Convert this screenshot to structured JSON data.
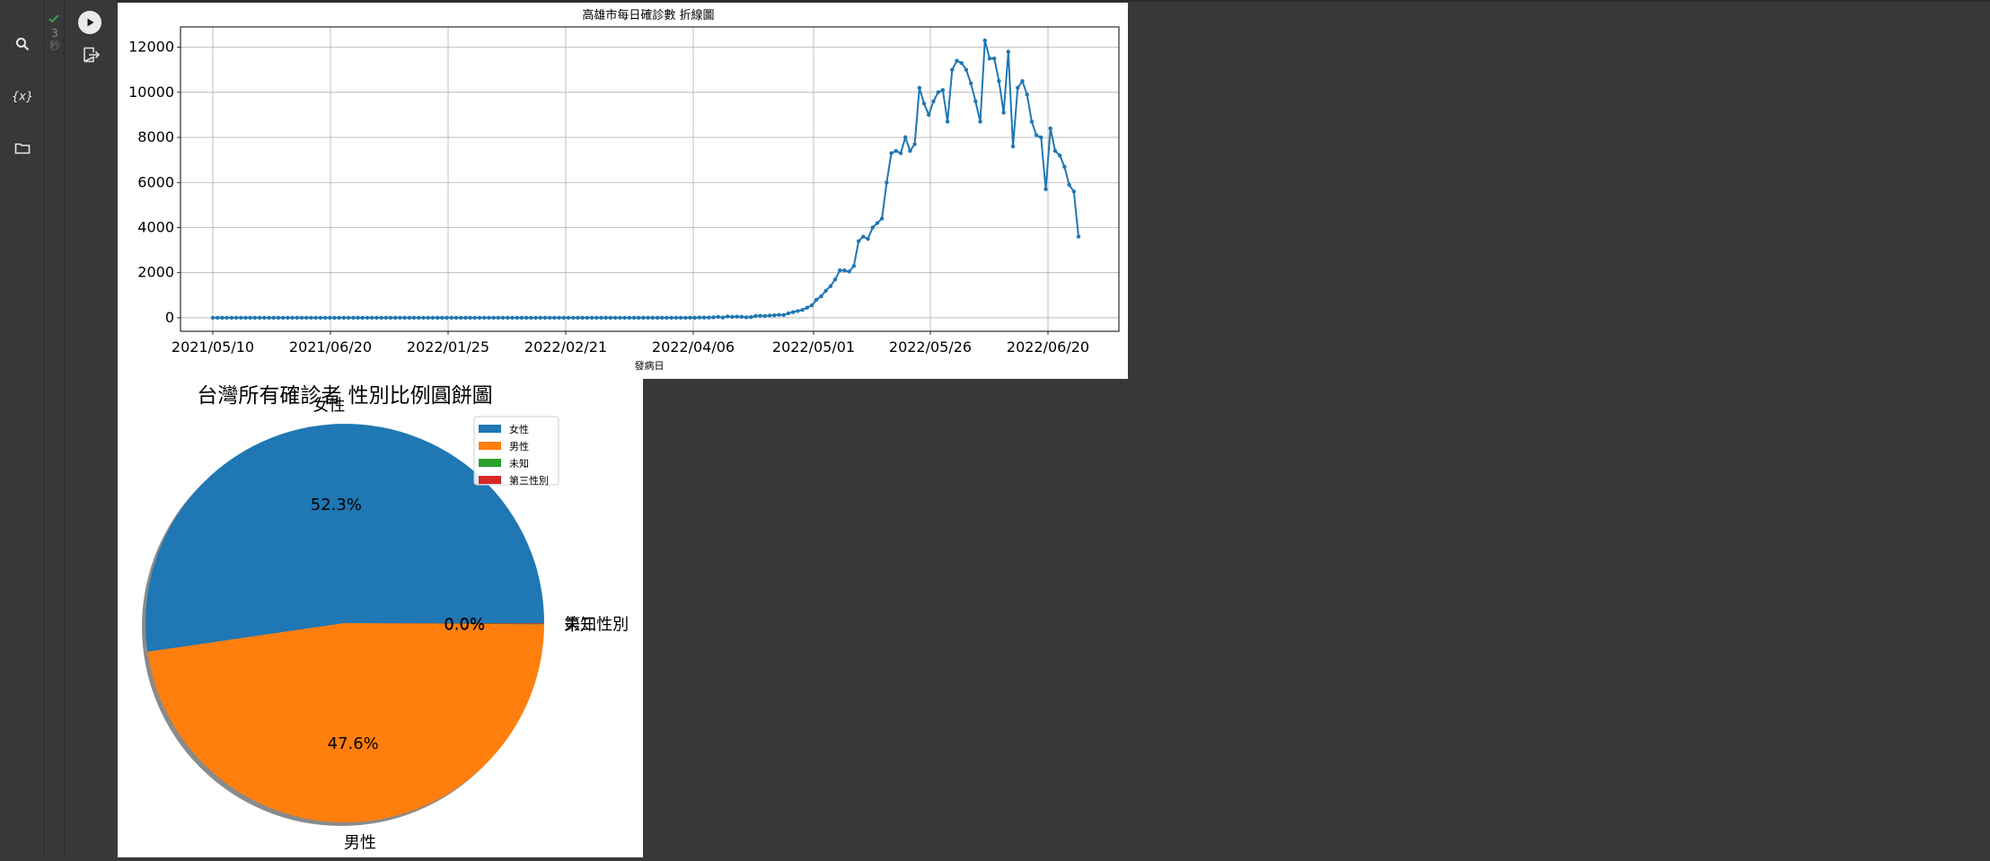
{
  "app": {
    "sidebar": [
      {
        "icon": "search-icon",
        "label": "search"
      },
      {
        "icon": "variables-icon",
        "label": "{x}"
      },
      {
        "icon": "folder-icon",
        "label": "files"
      }
    ],
    "cell": {
      "status_icon": "check-icon",
      "exec_count": "3",
      "exec_unit": "秒",
      "run_icon": "play-icon",
      "output_icon": "output-clear-icon"
    }
  },
  "chart_data": [
    {
      "type": "line",
      "title": "高雄市每日確診數 折線圖",
      "xlabel": "發病日",
      "ylabel": "",
      "grid": true,
      "ylim": [
        -600,
        12900
      ],
      "yticks": [
        0,
        2000,
        4000,
        6000,
        8000,
        10000,
        12000
      ],
      "xticks": [
        "2021/05/10",
        "2021/06/20",
        "2022/01/25",
        "2022/02/21",
        "2022/04/06",
        "2022/05/01",
        "2022/05/26",
        "2022/06/20"
      ],
      "series": [
        {
          "color": "#1f77b4",
          "marker": "dot",
          "values": [
            0,
            0,
            0,
            0,
            0,
            0,
            0,
            0,
            0,
            0,
            0,
            0,
            0,
            0,
            0,
            0,
            0,
            0,
            0,
            0,
            0,
            0,
            0,
            0,
            0,
            0,
            0,
            0,
            0,
            0,
            0,
            0,
            0,
            0,
            0,
            0,
            0,
            0,
            0,
            0,
            0,
            0,
            0,
            0,
            0,
            0,
            0,
            0,
            0,
            0,
            0,
            0,
            0,
            0,
            0,
            0,
            0,
            0,
            0,
            0,
            0,
            0,
            0,
            0,
            0,
            0,
            0,
            0,
            0,
            0,
            0,
            0,
            0,
            0,
            0,
            0,
            0,
            0,
            0,
            0,
            0,
            0,
            0,
            0,
            0,
            0,
            0,
            0,
            0,
            0,
            0,
            0,
            0,
            0,
            0,
            0,
            0,
            0,
            0,
            0,
            0,
            0,
            5,
            0,
            10,
            10,
            10,
            20,
            40,
            10,
            60,
            40,
            50,
            40,
            20,
            30,
            80,
            90,
            80,
            100,
            110,
            130,
            120,
            200,
            250,
            300,
            350,
            450,
            550,
            800,
            950,
            1200,
            1400,
            1700,
            2100,
            2100,
            2050,
            2300,
            3400,
            3600,
            3500,
            4000,
            4200,
            4400,
            6000,
            7300,
            7400,
            7300,
            8000,
            7400,
            7700,
            10200,
            9500,
            9000,
            9600,
            10000,
            10100,
            8700,
            11000,
            11400,
            11300,
            11000,
            10400,
            9600,
            8700,
            12300,
            11500,
            11500,
            10500,
            9100,
            11800,
            7600,
            10200,
            10500,
            9900,
            8700,
            8100,
            8000,
            5700,
            8400,
            7400,
            7200,
            6700,
            5900,
            5600,
            3600
          ]
        }
      ]
    },
    {
      "type": "pie",
      "title": "台灣所有確診者 性別比例圓餅圖",
      "legend": "top-right",
      "shadow": true,
      "slices": [
        {
          "label": "女性",
          "value": 52.3,
          "pct_label": "52.3%",
          "color": "#1f77b4"
        },
        {
          "label": "男性",
          "value": 47.6,
          "pct_label": "47.6%",
          "color": "#ff7f0e"
        },
        {
          "label": "未知",
          "value": 0.05,
          "pct_label": "0.0%",
          "color": "#2ca02c"
        },
        {
          "label": "第三性別",
          "value": 0.05,
          "pct_label": "0.0%",
          "color": "#d62728"
        }
      ]
    }
  ]
}
